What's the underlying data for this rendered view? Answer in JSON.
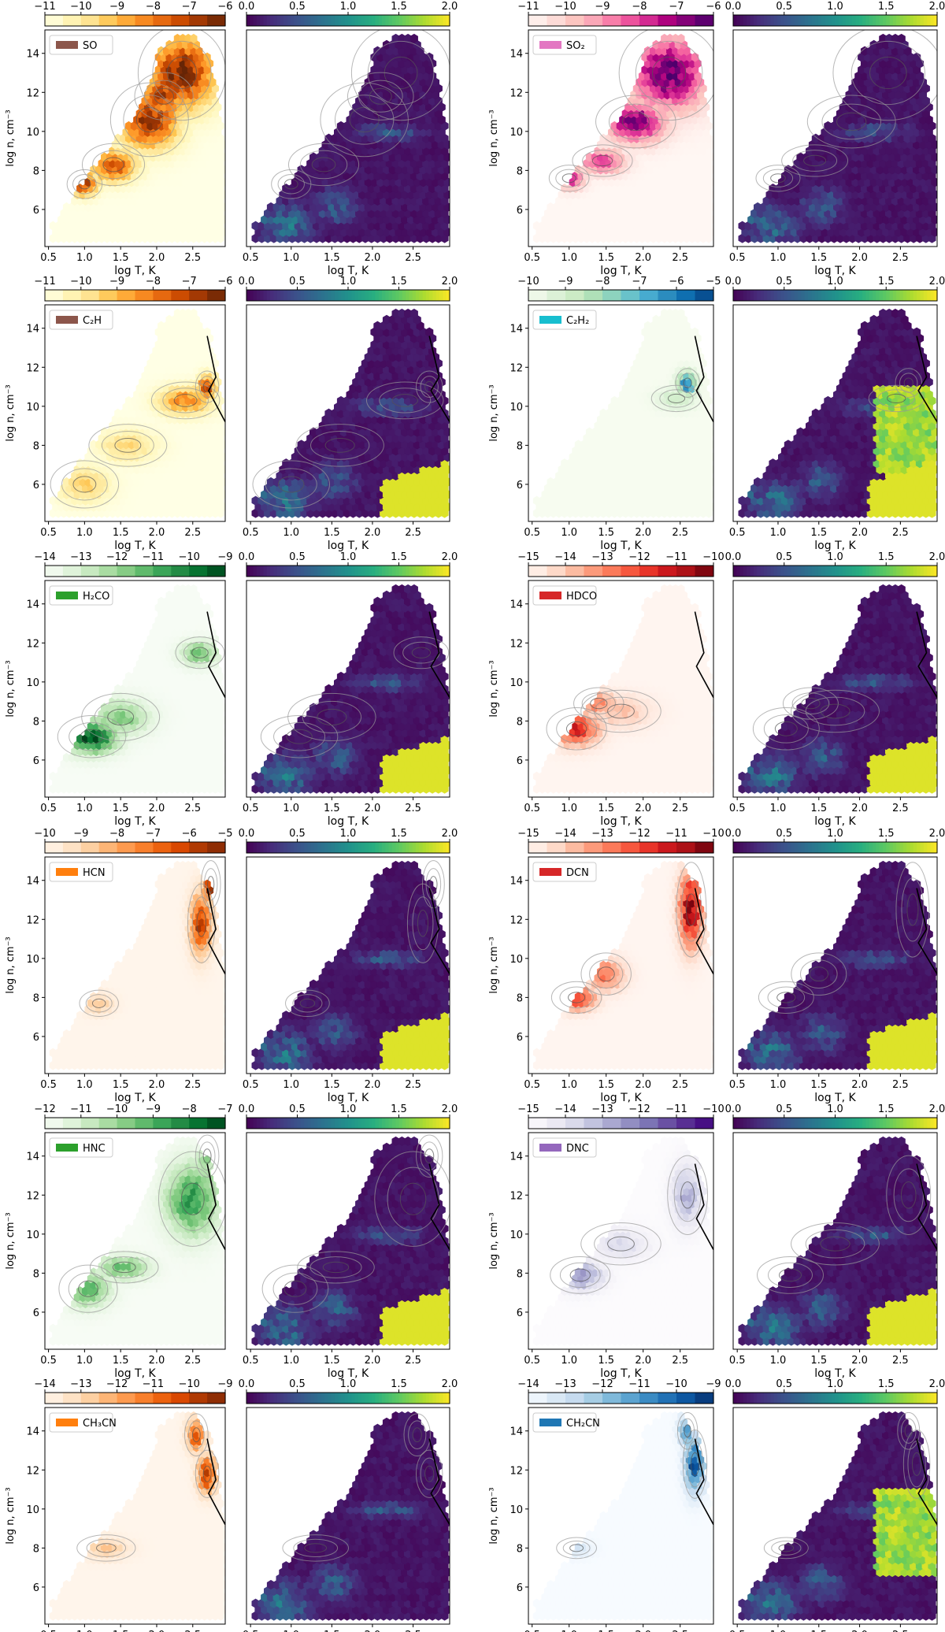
{
  "figure": {
    "common": {
      "xlabel": "log T, K",
      "ylabel": "log n,  cm⁻³",
      "xticks": [
        "0.5",
        "1.0",
        "1.5",
        "2.0",
        "2.5"
      ],
      "yticks": [
        "6",
        "8",
        "10",
        "12",
        "14"
      ],
      "xlim": [
        0.45,
        2.95
      ],
      "ylim": [
        4.1,
        15.2
      ],
      "ratio_ticks": [
        "0.0",
        "0.5",
        "1.0",
        "1.5",
        "2.0"
      ],
      "ratio_range": [
        0.0,
        2.0
      ]
    },
    "colormaps": {
      "viridis": [
        "#440154",
        "#472d7b",
        "#3b528b",
        "#2c728e",
        "#21918c",
        "#28ae80",
        "#5ec962",
        "#addc30",
        "#fde725"
      ],
      "Oranges": [
        "#fff5eb",
        "#fee6ce",
        "#fdd0a2",
        "#fdae6b",
        "#fd8d3c",
        "#f16913",
        "#d94801",
        "#a63603",
        "#7f2704"
      ],
      "YlOrBr": [
        "#ffffe5",
        "#fff7bc",
        "#fee391",
        "#fec44f",
        "#fe9929",
        "#ec7014",
        "#cc4c02",
        "#993404",
        "#662506"
      ],
      "RdPu": [
        "#fff7f3",
        "#fde0dd",
        "#fcc5c0",
        "#fa9fb5",
        "#f768a1",
        "#dd3497",
        "#ae017e",
        "#7a0177",
        "#49006a"
      ],
      "GnBu": [
        "#f7fcf0",
        "#e0f3db",
        "#ccebc5",
        "#a8ddb5",
        "#7bccc4",
        "#4eb3d3",
        "#2b8cbe",
        "#0868ac",
        "#084081"
      ],
      "Greens": [
        "#f7fcf5",
        "#e5f5e0",
        "#c7e9c0",
        "#a1d99b",
        "#74c476",
        "#41ab5d",
        "#238b45",
        "#006d2c",
        "#00441b"
      ],
      "Reds": [
        "#fff5f0",
        "#fee0d2",
        "#fcbba1",
        "#fc9272",
        "#fb6a4a",
        "#ef3b2c",
        "#cb181d",
        "#a50f15",
        "#67000d"
      ],
      "Purples": [
        "#fcfbfd",
        "#efedf5",
        "#dadaeb",
        "#bcbddc",
        "#9e9ac8",
        "#807dba",
        "#6a51a3",
        "#54278f",
        "#3f007d"
      ],
      "Blues": [
        "#f7fbff",
        "#deebf7",
        "#c6dbef",
        "#9ecae1",
        "#6baed6",
        "#4292c6",
        "#2171b5",
        "#08519c",
        "#08306b"
      ]
    },
    "panels": [
      {
        "species": "SO",
        "legend_color": "#8c564b",
        "cmap": "YlOrBr",
        "abund_ticks": [
          "−11",
          "−10",
          "−9",
          "−8",
          "−7",
          "−6"
        ],
        "abund_range": [
          -11,
          -6
        ],
        "has_boundary_line": false
      },
      {
        "species": "SO₂",
        "legend_color": "#e377c2",
        "cmap": "RdPu",
        "abund_ticks": [
          "−11",
          "−10",
          "−9",
          "−8",
          "−7",
          "−6"
        ],
        "abund_range": [
          -11,
          -6
        ],
        "has_boundary_line": false
      },
      {
        "species": "C₂H",
        "legend_color": "#8c564b",
        "cmap": "YlOrBr",
        "abund_ticks": [
          "−11",
          "−10",
          "−9",
          "−8",
          "−7",
          "−6"
        ],
        "abund_range": [
          -11,
          -6
        ],
        "has_boundary_line": true
      },
      {
        "species": "C₂H₂",
        "legend_color": "#17becf",
        "cmap": "GnBu",
        "abund_ticks": [
          "−10",
          "−9",
          "−8",
          "−7",
          "−6",
          "−5"
        ],
        "abund_range": [
          -10,
          -5
        ],
        "has_boundary_line": true
      },
      {
        "species": "H₂CO",
        "legend_color": "#2ca02c",
        "cmap": "Greens",
        "abund_ticks": [
          "−14",
          "−13",
          "−12",
          "−11",
          "−10",
          "−9"
        ],
        "abund_range": [
          -14,
          -9
        ],
        "has_boundary_line": true
      },
      {
        "species": "HDCO",
        "legend_color": "#d62728",
        "cmap": "Reds",
        "abund_ticks": [
          "−15",
          "−14",
          "−13",
          "−12",
          "−11",
          "−10"
        ],
        "abund_range": [
          -15,
          -10
        ],
        "has_boundary_line": true
      },
      {
        "species": "HCN",
        "legend_color": "#ff7f0e",
        "cmap": "Oranges",
        "abund_ticks": [
          "−10",
          "−9",
          "−8",
          "−7",
          "−6",
          "−5"
        ],
        "abund_range": [
          -10,
          -5
        ],
        "has_boundary_line": true
      },
      {
        "species": "DCN",
        "legend_color": "#d62728",
        "cmap": "Reds",
        "abund_ticks": [
          "−15",
          "−14",
          "−13",
          "−12",
          "−11",
          "−10"
        ],
        "abund_range": [
          -15,
          -10
        ],
        "has_boundary_line": true
      },
      {
        "species": "HNC",
        "legend_color": "#2ca02c",
        "cmap": "Greens",
        "abund_ticks": [
          "−12",
          "−11",
          "−10",
          "−9",
          "−8",
          "−7"
        ],
        "abund_range": [
          -12,
          -7
        ],
        "has_boundary_line": true
      },
      {
        "species": "DNC",
        "legend_color": "#9467bd",
        "cmap": "Purples",
        "abund_ticks": [
          "−15",
          "−14",
          "−13",
          "−12",
          "−11",
          "−10"
        ],
        "abund_range": [
          -15,
          -10
        ],
        "has_boundary_line": true
      },
      {
        "species": "CH₃CN",
        "legend_color": "#ff7f0e",
        "cmap": "Oranges",
        "abund_ticks": [
          "−14",
          "−13",
          "−12",
          "−11",
          "−10",
          "−9"
        ],
        "abund_range": [
          -14,
          -9
        ],
        "has_boundary_line": true
      },
      {
        "species": "CH₂CN",
        "legend_color": "#1f77b4",
        "cmap": "Blues",
        "abund_ticks": [
          "−14",
          "−13",
          "−12",
          "−11",
          "−10",
          "−9"
        ],
        "abund_range": [
          -14,
          -9
        ],
        "has_boundary_line": true
      }
    ]
  },
  "chart_data": {
    "type": "heatmap",
    "description_of_axes": {
      "x": "log T, K",
      "y": "log n,  cm⁻³"
    },
    "xlim": [
      0.45,
      2.95
    ],
    "ylim": [
      4.1,
      15.2
    ],
    "grid": false,
    "domain_polygon": [
      [
        0.55,
        4.3
      ],
      [
        0.55,
        5.2
      ],
      [
        1.15,
        8.2
      ],
      [
        1.8,
        11.3
      ],
      [
        2.05,
        14.2
      ],
      [
        2.3,
        14.9
      ],
      [
        2.55,
        14.9
      ],
      [
        2.75,
        13.5
      ],
      [
        2.9,
        10.5
      ],
      [
        2.95,
        9.0
      ],
      [
        2.95,
        4.3
      ]
    ],
    "boundary_line": [
      [
        2.7,
        13.6
      ],
      [
        2.82,
        11.5
      ],
      [
        2.72,
        10.8
      ],
      [
        2.95,
        9.2
      ]
    ],
    "abundance_panels": [
      {
        "species": "SO",
        "blobs": [
          [
            1.0,
            7.3,
            0.18,
            0.55,
            0.85
          ],
          [
            1.4,
            8.3,
            0.32,
            0.8,
            0.8
          ],
          [
            1.9,
            10.6,
            0.4,
            1.4,
            0.95
          ],
          [
            2.35,
            13.0,
            0.45,
            1.8,
            1.0
          ],
          [
            2.1,
            11.8,
            0.3,
            0.9,
            0.9
          ]
        ]
      },
      {
        "species": "SO₂",
        "blobs": [
          [
            1.0,
            7.6,
            0.2,
            0.5,
            0.75
          ],
          [
            1.45,
            8.5,
            0.3,
            0.6,
            0.7
          ],
          [
            1.9,
            10.5,
            0.4,
            1.0,
            0.95
          ],
          [
            2.35,
            13.0,
            0.5,
            1.8,
            1.0
          ]
        ]
      },
      {
        "species": "C₂H",
        "blobs": [
          [
            1.0,
            6.0,
            0.35,
            0.9,
            0.35
          ],
          [
            1.6,
            8.0,
            0.4,
            0.8,
            0.3
          ],
          [
            2.4,
            10.3,
            0.35,
            0.7,
            0.6
          ],
          [
            2.7,
            11.0,
            0.12,
            0.6,
            0.85
          ]
        ]
      },
      {
        "species": "C₂H₂",
        "blobs": [
          [
            2.6,
            11.2,
            0.12,
            0.55,
            0.9
          ],
          [
            2.45,
            10.4,
            0.25,
            0.5,
            0.25
          ]
        ]
      },
      {
        "species": "H₂CO",
        "blobs": [
          [
            1.1,
            7.2,
            0.35,
            0.8,
            1.0
          ],
          [
            1.5,
            8.2,
            0.4,
            0.9,
            0.5
          ],
          [
            2.6,
            11.5,
            0.25,
            0.6,
            0.55
          ]
        ]
      },
      {
        "species": "HDCO",
        "blobs": [
          [
            1.1,
            7.6,
            0.3,
            0.8,
            0.75
          ],
          [
            1.4,
            8.9,
            0.25,
            0.6,
            0.45
          ],
          [
            1.7,
            8.5,
            0.4,
            0.8,
            0.25
          ]
        ]
      },
      {
        "species": "HCN",
        "blobs": [
          [
            2.62,
            11.8,
            0.14,
            1.5,
            0.9
          ],
          [
            2.75,
            13.8,
            0.1,
            0.9,
            0.95
          ],
          [
            1.2,
            7.7,
            0.2,
            0.5,
            0.3
          ]
        ]
      },
      {
        "species": "DCN",
        "blobs": [
          [
            2.65,
            12.5,
            0.15,
            1.8,
            1.0
          ],
          [
            1.1,
            8.0,
            0.25,
            0.6,
            0.75
          ],
          [
            1.5,
            9.2,
            0.25,
            0.8,
            0.5
          ]
        ]
      },
      {
        "species": "HNC",
        "blobs": [
          [
            1.05,
            7.2,
            0.3,
            0.9,
            0.6
          ],
          [
            1.55,
            8.3,
            0.35,
            0.6,
            0.55
          ],
          [
            2.5,
            11.8,
            0.35,
            1.8,
            0.75
          ],
          [
            2.7,
            14.0,
            0.12,
            0.8,
            0.5
          ]
        ]
      },
      {
        "species": "DNC",
        "blobs": [
          [
            1.15,
            7.9,
            0.3,
            0.7,
            0.6
          ],
          [
            2.6,
            12.0,
            0.2,
            1.5,
            0.45
          ],
          [
            1.7,
            9.5,
            0.4,
            0.8,
            0.25
          ]
        ]
      },
      {
        "species": "CH₃CN",
        "blobs": [
          [
            2.7,
            11.8,
            0.12,
            0.9,
            0.95
          ],
          [
            2.55,
            13.8,
            0.12,
            0.8,
            0.75
          ],
          [
            1.3,
            8.0,
            0.3,
            0.5,
            0.3
          ]
        ]
      },
      {
        "species": "CH₂CN",
        "blobs": [
          [
            2.7,
            12.3,
            0.12,
            1.3,
            0.95
          ],
          [
            2.6,
            14.0,
            0.1,
            0.7,
            0.7
          ],
          [
            1.1,
            8.0,
            0.2,
            0.4,
            0.2
          ]
        ]
      }
    ],
    "ratio_panels": {
      "background_value": 0.05,
      "common_features": [
        [
          0.95,
          5.2,
          0.35,
          1.2,
          0.75
        ],
        [
          1.55,
          6.2,
          0.3,
          1.1,
          0.6
        ],
        [
          2.2,
          10.0,
          0.5,
          0.5,
          0.55
        ]
      ],
      "hot_corner": {
        "x_from": 2.1,
        "slope": 0.95,
        "y_offset": 1.8,
        "value": 1.9
      },
      "panels_with_hot_corner": [
        "C₂H",
        "C₂H₂",
        "H₂CO",
        "HDCO",
        "HCN",
        "DCN",
        "HNC",
        "DNC"
      ],
      "panels_with_extended_yellow": [
        "C₂H₂",
        "CH₂CN"
      ]
    }
  }
}
